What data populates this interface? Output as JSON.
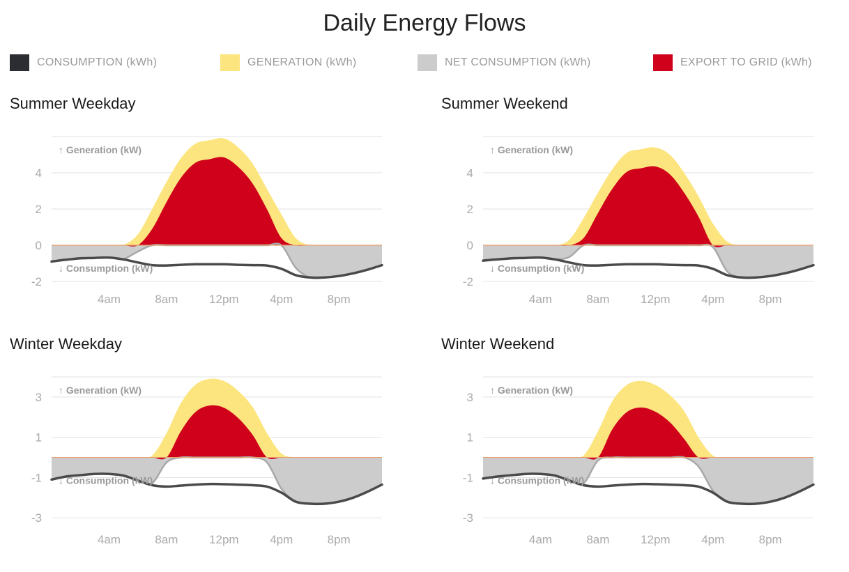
{
  "title": "Daily Energy Flows",
  "legend": [
    {
      "label": "CONSUMPTION (kWh)",
      "color": "#2c2c33"
    },
    {
      "label": "GENERATION (kWh)",
      "color": "#fce57e"
    },
    {
      "label": "NET CONSUMPTION (kWh)",
      "color": "#cccccc"
    },
    {
      "label": "EXPORT TO GRID (kWh)",
      "color": "#d0021b"
    }
  ],
  "colors": {
    "consumption": "#4a4a4a",
    "generation": "#fce57e",
    "net": "#cccccc",
    "net_line": "#a8a8a8",
    "export": "#d0021b",
    "zero_line": "#e8a070",
    "grid": "#e2e2e2",
    "tick": "#aaaaaa",
    "annotation": "#9a9a9a"
  },
  "chart_data": [
    {
      "type": "area",
      "title": "Summer Weekday",
      "gen_label": "↑ Generation (kW)",
      "cons_label": "↓ Consumption (kW)",
      "x_ticks": [
        "4am",
        "8am",
        "12pm",
        "4pm",
        "8pm"
      ],
      "x_tick_hours": [
        4,
        8,
        12,
        16,
        20
      ],
      "xlim": [
        0,
        23
      ],
      "y_ticks": [
        4,
        2,
        0,
        -2
      ],
      "ylim": [
        -2,
        6
      ],
      "x": [
        0,
        1,
        2,
        3,
        4,
        5,
        6,
        7,
        8,
        9,
        10,
        11,
        12,
        13,
        14,
        15,
        16,
        17,
        18,
        19,
        20,
        21,
        22,
        23
      ],
      "generation": [
        0,
        0,
        0,
        0,
        0,
        0.02,
        0.6,
        2.0,
        3.5,
        4.8,
        5.6,
        5.8,
        5.9,
        5.4,
        4.5,
        3.1,
        1.7,
        0.4,
        0,
        0,
        0,
        0,
        0,
        0
      ],
      "consumption": [
        -0.9,
        -0.8,
        -0.72,
        -0.7,
        -0.68,
        -0.78,
        -0.95,
        -1.1,
        -1.12,
        -1.08,
        -1.05,
        -1.05,
        -1.05,
        -1.08,
        -1.1,
        -1.12,
        -1.3,
        -1.65,
        -1.78,
        -1.78,
        -1.7,
        -1.55,
        -1.35,
        -1.1
      ]
    },
    {
      "type": "area",
      "title": "Summer Weekend",
      "gen_label": "↑ Generation (kW)",
      "cons_label": "↓ Consumption (kW)",
      "x_ticks": [
        "4am",
        "8am",
        "12pm",
        "4pm",
        "8pm"
      ],
      "x_tick_hours": [
        4,
        8,
        12,
        16,
        20
      ],
      "xlim": [
        0,
        23
      ],
      "y_ticks": [
        4,
        2,
        0,
        -2
      ],
      "ylim": [
        -2,
        6
      ],
      "x": [
        0,
        1,
        2,
        3,
        4,
        5,
        6,
        7,
        8,
        9,
        10,
        11,
        12,
        13,
        14,
        15,
        16,
        17,
        18,
        19,
        20,
        21,
        22,
        23
      ],
      "generation": [
        0,
        0,
        0,
        0,
        0,
        0,
        0.3,
        1.5,
        2.9,
        4.2,
        5.1,
        5.3,
        5.4,
        5.0,
        4.0,
        2.7,
        1.2,
        0.2,
        0,
        0,
        0,
        0,
        0,
        0
      ],
      "consumption": [
        -0.85,
        -0.78,
        -0.72,
        -0.7,
        -0.68,
        -0.78,
        -0.95,
        -1.1,
        -1.12,
        -1.08,
        -1.05,
        -1.05,
        -1.05,
        -1.08,
        -1.1,
        -1.12,
        -1.3,
        -1.65,
        -1.78,
        -1.78,
        -1.7,
        -1.55,
        -1.35,
        -1.1
      ]
    },
    {
      "type": "area",
      "title": "Winter Weekday",
      "gen_label": "↑ Generation (kW)",
      "cons_label": "↓ Consumption (kW)",
      "x_ticks": [
        "4am",
        "8am",
        "12pm",
        "4pm",
        "8pm"
      ],
      "x_tick_hours": [
        4,
        8,
        12,
        16,
        20
      ],
      "xlim": [
        0,
        23
      ],
      "y_ticks": [
        3,
        1,
        -1,
        -3
      ],
      "ylim": [
        -3.2,
        4
      ],
      "x": [
        0,
        1,
        2,
        3,
        4,
        5,
        6,
        7,
        8,
        9,
        10,
        11,
        12,
        13,
        14,
        15,
        16,
        17,
        18,
        19,
        20,
        21,
        22,
        23
      ],
      "generation": [
        0,
        0,
        0,
        0,
        0,
        0,
        0,
        0.1,
        1.2,
        2.7,
        3.6,
        3.9,
        3.8,
        3.3,
        2.5,
        1.2,
        0.2,
        0,
        0,
        0,
        0,
        0,
        0,
        0
      ],
      "consumption": [
        -1.1,
        -0.95,
        -0.88,
        -0.82,
        -0.82,
        -0.9,
        -1.15,
        -1.38,
        -1.45,
        -1.4,
        -1.35,
        -1.32,
        -1.33,
        -1.35,
        -1.38,
        -1.45,
        -1.75,
        -2.2,
        -2.3,
        -2.3,
        -2.2,
        -2.0,
        -1.7,
        -1.35
      ]
    },
    {
      "type": "area",
      "title": "Winter Weekend",
      "gen_label": "↑ Generation (kW)",
      "cons_label": "↓ Consumption (kW)",
      "x_ticks": [
        "4am",
        "8am",
        "12pm",
        "4pm",
        "8pm"
      ],
      "x_tick_hours": [
        4,
        8,
        12,
        16,
        20
      ],
      "xlim": [
        0,
        23
      ],
      "y_ticks": [
        3,
        1,
        -1,
        -3
      ],
      "ylim": [
        -3.2,
        4
      ],
      "x": [
        0,
        1,
        2,
        3,
        4,
        5,
        6,
        7,
        8,
        9,
        10,
        11,
        12,
        13,
        14,
        15,
        16,
        17,
        18,
        19,
        20,
        21,
        22,
        23
      ],
      "generation": [
        0,
        0,
        0,
        0,
        0,
        0,
        0,
        0.1,
        1.3,
        2.8,
        3.6,
        3.8,
        3.6,
        3.1,
        2.3,
        1.0,
        0.1,
        0,
        0,
        0,
        0,
        0,
        0,
        0
      ],
      "consumption": [
        -1.05,
        -0.95,
        -0.88,
        -0.82,
        -0.82,
        -0.9,
        -1.15,
        -1.38,
        -1.45,
        -1.4,
        -1.35,
        -1.32,
        -1.33,
        -1.35,
        -1.38,
        -1.45,
        -1.75,
        -2.2,
        -2.3,
        -2.3,
        -2.2,
        -2.0,
        -1.7,
        -1.35
      ]
    }
  ]
}
